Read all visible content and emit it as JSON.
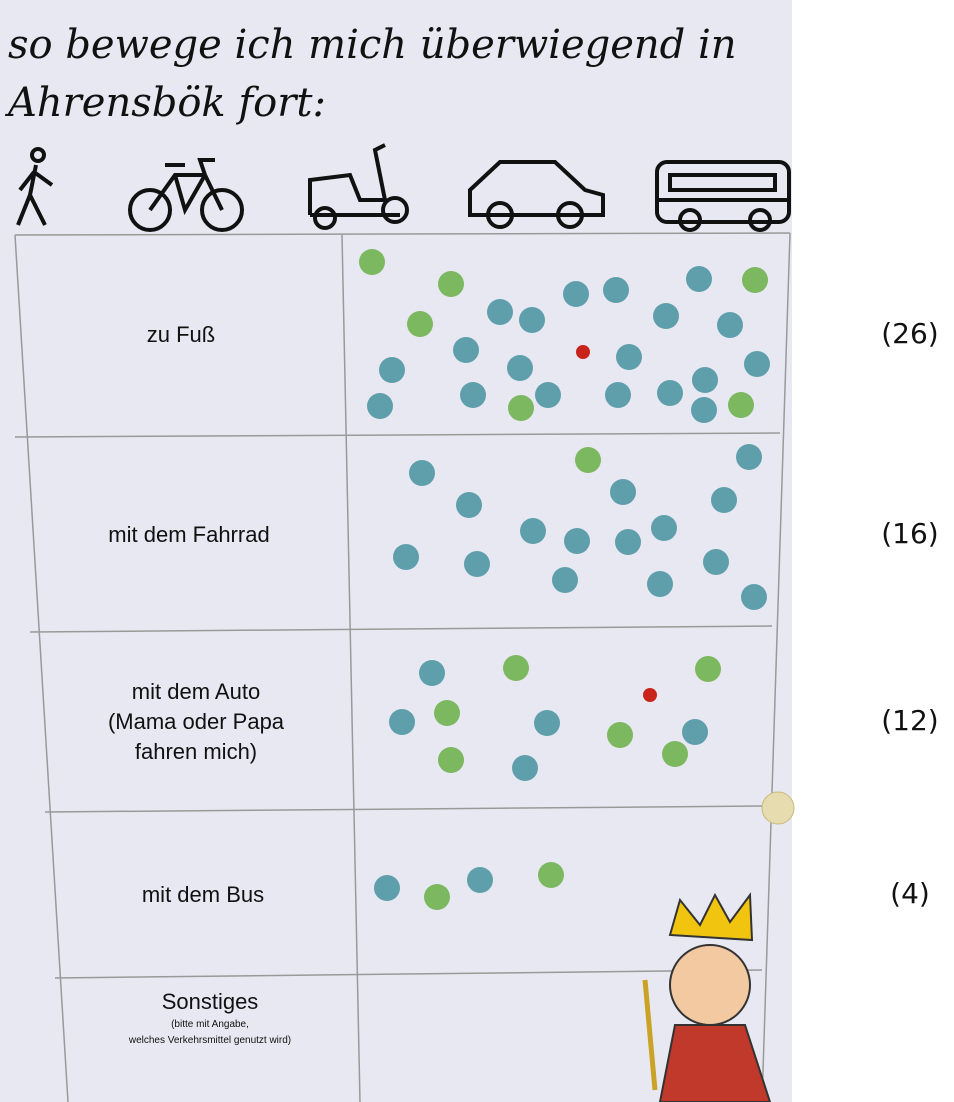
{
  "title": [
    "so bewege ich mich überwiegend in",
    "Ahrensbök fort:"
  ],
  "rows": [
    {
      "label": [
        "zu Fuß"
      ],
      "count": "(26)"
    },
    {
      "label": [
        "mit dem Fahrrad"
      ],
      "count": "(16)"
    },
    {
      "label": [
        "mit dem Auto",
        "(Mama oder Papa",
        "fahren mich)"
      ],
      "count": "(12)"
    },
    {
      "label": [
        "mit dem Bus"
      ],
      "count": "(4)"
    },
    {
      "label": [
        "Sonstiges",
        "(bitte mit Angabe,",
        "welches Verkehrsmittel genutzt wird)"
      ]
    }
  ]
}
